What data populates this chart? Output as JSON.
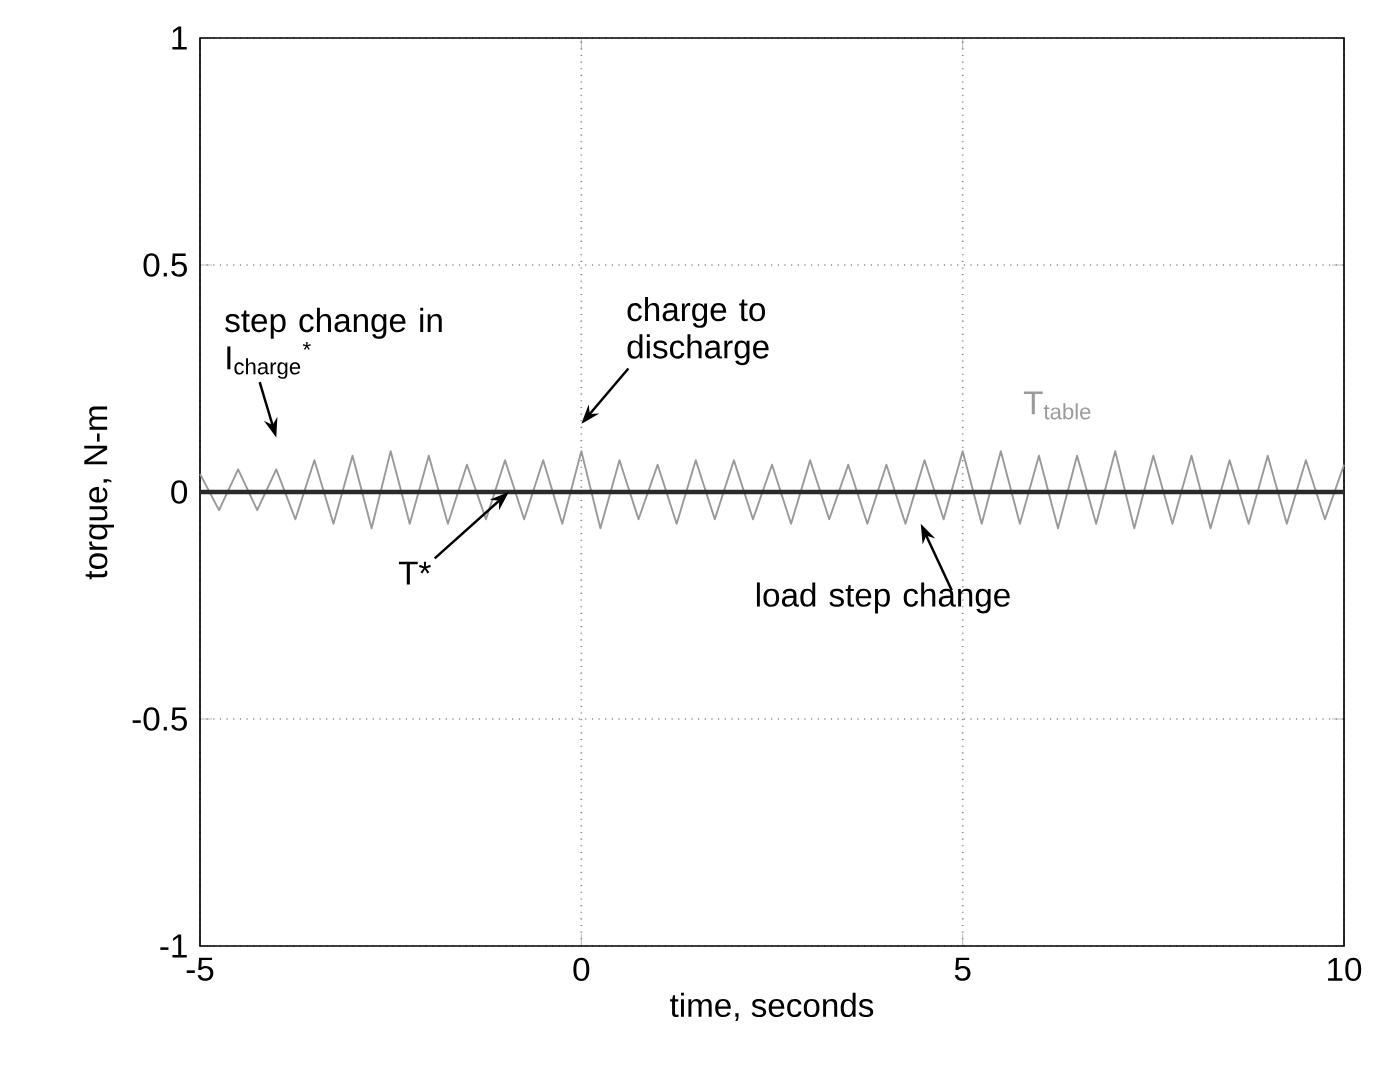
{
  "chart_data": {
    "type": "line",
    "xlabel": "time, seconds",
    "ylabel": "torque, N-m",
    "xlim": [
      -5,
      10
    ],
    "ylim": [
      -1,
      1
    ],
    "xticks": [
      -5,
      0,
      5,
      10
    ],
    "yticks": [
      -1,
      -0.5,
      0,
      0.5,
      1
    ],
    "grid": true,
    "legend": false,
    "series": [
      {
        "name": "T$_{table}$",
        "color": "#9a9a9a",
        "x": [
          -5,
          -4.75,
          -4.5,
          -4.25,
          -4,
          -3.75,
          -3.5,
          -3.25,
          -3,
          -2.75,
          -2.5,
          -2.25,
          -2,
          -1.75,
          -1.5,
          -1.25,
          -1,
          -0.75,
          -0.5,
          -0.25,
          0,
          0.25,
          0.5,
          0.75,
          1,
          1.25,
          1.5,
          1.75,
          2,
          2.25,
          2.5,
          2.75,
          3,
          3.25,
          3.5,
          3.75,
          4,
          4.25,
          4.5,
          4.75,
          5,
          5.25,
          5.5,
          5.75,
          6,
          6.25,
          6.5,
          6.75,
          7,
          7.25,
          7.5,
          7.75,
          8,
          8.25,
          8.5,
          8.75,
          9,
          9.25,
          9.5,
          9.75,
          10
        ],
        "values": [
          0.04,
          -0.04,
          0.05,
          -0.04,
          0.05,
          -0.06,
          0.07,
          -0.07,
          0.08,
          -0.08,
          0.09,
          -0.07,
          0.08,
          -0.07,
          0.06,
          -0.06,
          0.07,
          -0.06,
          0.07,
          -0.07,
          0.09,
          -0.08,
          0.07,
          -0.06,
          0.06,
          -0.07,
          0.07,
          -0.06,
          0.07,
          -0.06,
          0.06,
          -0.07,
          0.07,
          -0.06,
          0.06,
          -0.07,
          0.06,
          -0.07,
          0.07,
          -0.06,
          0.09,
          -0.07,
          0.09,
          -0.07,
          0.08,
          -0.08,
          0.08,
          -0.07,
          0.09,
          -0.08,
          0.08,
          -0.07,
          0.08,
          -0.08,
          0.07,
          -0.07,
          0.08,
          -0.07,
          0.07,
          -0.06,
          0.06
        ]
      },
      {
        "name": "T*",
        "color": "#2a2a2a",
        "x": [
          -5,
          10
        ],
        "values": [
          0,
          0
        ]
      }
    ],
    "annotations": [
      "step change in I$_{charge}$$^{*}$",
      "charge to discharge",
      "load step change"
    ]
  }
}
